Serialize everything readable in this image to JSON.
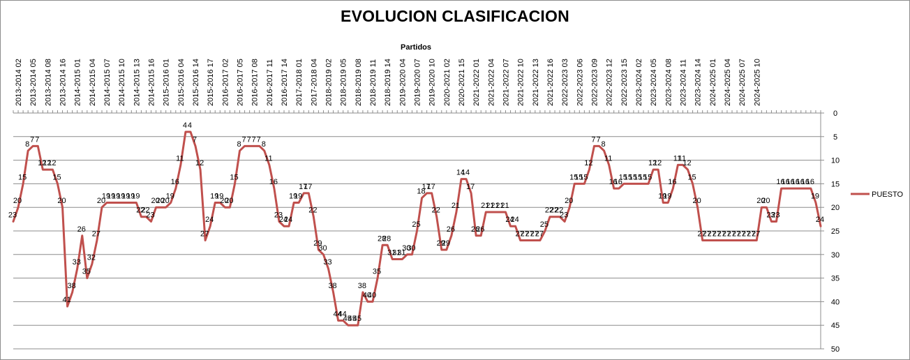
{
  "chart_data": {
    "type": "line",
    "title": "EVOLUCION CLASIFICACION",
    "xlabel": "Partidos",
    "ylabel": "",
    "ylim": [
      0,
      50
    ],
    "y_inverted": true,
    "y_ticks": [
      0,
      5,
      10,
      15,
      20,
      25,
      30,
      35,
      40,
      45,
      50
    ],
    "x_axis_position": "top",
    "y_axis_position": "right",
    "grid": true,
    "legend_position": "right",
    "color": "#C0504D",
    "x_tick_labels": [
      "2013-2014 02",
      "2013-2014 05",
      "2013-2014 08",
      "2013-2014 16",
      "2014-2015 01",
      "2014-2015 04",
      "2014-2015 07",
      "2014-2015 10",
      "2014-2015 13",
      "2014-2015 16",
      "2015-2016 01",
      "2015-2016 04",
      "2015-2016 14",
      "2015-2016 17",
      "2016-2017 02",
      "2016-2017 05",
      "2016-2017 08",
      "2016-2017 11",
      "2016-2017 14",
      "2017-2018 01",
      "2017-2018 04",
      "2018-2019 02",
      "2018-2019 05",
      "2018-2019 08",
      "2018-2019 11",
      "2018-2019 14",
      "2019-2020 04",
      "2019-2020 07",
      "2019-2020 10",
      "2020-2021 02",
      "2020-2021 15",
      "2021-2022 01",
      "2021-2022 04",
      "2021-2022 07",
      "2021-2022 10",
      "2021-2022 13",
      "2021-2022 16",
      "2022-2023 03",
      "2022-2023 06",
      "2022-2023 09",
      "2022-2023 12",
      "2022-2023 15",
      "2023-2024 02",
      "2023-2024 05",
      "2023-2024 08",
      "2023-2024 11",
      "2023-2024 14",
      "2024-2025 01",
      "2024-2025 04",
      "2024-2025 07",
      "2024-2025 10"
    ],
    "series": [
      {
        "name": "PUESTO",
        "values": [
          23,
          20,
          15,
          8,
          7,
          7,
          12,
          12,
          12,
          15,
          20,
          41,
          38,
          33,
          26,
          35,
          32,
          27,
          20,
          19,
          19,
          19,
          19,
          19,
          19,
          19,
          22,
          22,
          23,
          20,
          20,
          20,
          19,
          16,
          11,
          4,
          4,
          7,
          12,
          27,
          24,
          19,
          19,
          20,
          20,
          15,
          8,
          7,
          7,
          7,
          7,
          8,
          11,
          16,
          23,
          24,
          24,
          19,
          19,
          17,
          17,
          22,
          29,
          30,
          33,
          38,
          44,
          44,
          45,
          45,
          45,
          38,
          40,
          40,
          35,
          28,
          28,
          31,
          31,
          31,
          30,
          30,
          25,
          18,
          17,
          17,
          22,
          29,
          29,
          26,
          21,
          14,
          14,
          17,
          26,
          26,
          21,
          21,
          21,
          21,
          21,
          24,
          24,
          27,
          27,
          27,
          27,
          27,
          25,
          22,
          22,
          22,
          23,
          20,
          15,
          15,
          15,
          12,
          7,
          7,
          8,
          11,
          16,
          16,
          15,
          15,
          15,
          15,
          15,
          15,
          12,
          12,
          19,
          19,
          16,
          11,
          11,
          12,
          15,
          20,
          27,
          27,
          27,
          27,
          27,
          27,
          27,
          27,
          27,
          27,
          27,
          27,
          20,
          20,
          23,
          23,
          16,
          16,
          16,
          16,
          16,
          16,
          16,
          19,
          24
        ]
      }
    ]
  }
}
